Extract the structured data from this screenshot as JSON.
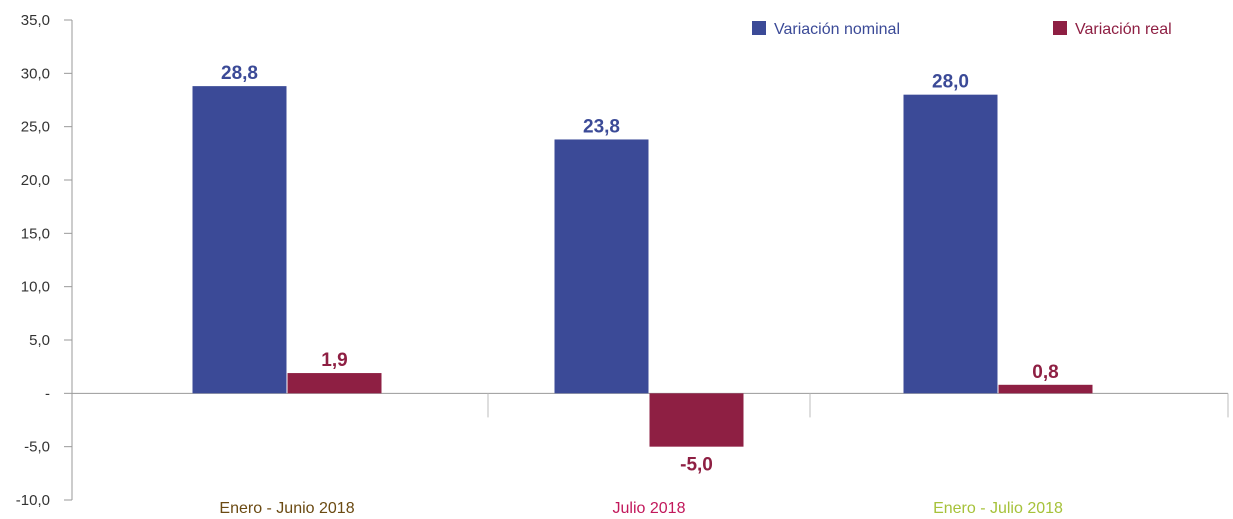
{
  "chart_data": {
    "type": "bar",
    "categories": [
      "Enero - Junio 2018",
      "Julio 2018",
      "Enero - Julio 2018"
    ],
    "category_colors": [
      "#6b4a12",
      "#c2185b",
      "#a6c23a"
    ],
    "series": [
      {
        "name": "Variación nominal",
        "color": "#3b4a97",
        "values": [
          28.8,
          23.8,
          28.0
        ],
        "labels": [
          "28,8",
          "23,8",
          "28,0"
        ]
      },
      {
        "name": "Variación real",
        "color": "#8e1f43",
        "values": [
          1.9,
          -5.0,
          0.8
        ],
        "labels": [
          "1,9",
          "-5,0",
          "0,8"
        ]
      }
    ],
    "ylim": [
      -10,
      35
    ],
    "yticks": [
      35,
      30,
      25,
      20,
      15,
      10,
      5,
      0,
      -5,
      -10
    ],
    "ytick_labels": [
      "35,0",
      "30,0",
      "25,0",
      "20,0",
      "15,0",
      "10,0",
      "5,0",
      "-",
      "-5,0",
      "-10,0"
    ],
    "title": "",
    "xlabel": "",
    "ylabel": "",
    "grid": false,
    "legend_position": "top-right"
  }
}
